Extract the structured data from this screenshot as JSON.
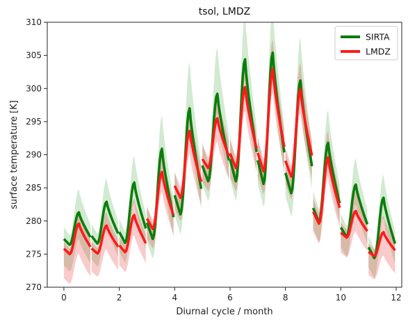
{
  "chart_data": {
    "type": "line",
    "title": "tsol, LMDZ",
    "xlabel": "Diurnal cycle / month",
    "ylabel": "surface temperature [K]",
    "xlim": [
      -0.6,
      12.2
    ],
    "ylim": [
      270,
      310
    ],
    "xticks": [
      0,
      2,
      4,
      6,
      8,
      10,
      12
    ],
    "yticks": [
      270,
      275,
      280,
      285,
      290,
      295,
      300,
      305,
      310
    ],
    "grid": false,
    "legend": {
      "position": "top-right",
      "entries": [
        "SIRTA",
        "LMDZ"
      ]
    },
    "daily_profile_hours": [
      0,
      1,
      2,
      3,
      4,
      5,
      6,
      7,
      8,
      9,
      10,
      11,
      12,
      13,
      14,
      15,
      16,
      17,
      18,
      19,
      20,
      21,
      22,
      23
    ],
    "series": [
      {
        "name": "SIRTA",
        "color": "#0a7d0a",
        "band_color": "#2ca02c",
        "months": [
          {
            "month": 0,
            "min": 276.4,
            "max": 281.3,
            "spread_low": 4.0,
            "spread_high": 3.5
          },
          {
            "month": 1,
            "min": 276.6,
            "max": 282.9,
            "spread_low": 3.5,
            "spread_high": 3.5
          },
          {
            "month": 2,
            "min": 276.7,
            "max": 285.8,
            "spread_low": 3.0,
            "spread_high": 4.0
          },
          {
            "month": 3,
            "min": 277.3,
            "max": 290.9,
            "spread_low": 3.0,
            "spread_high": 5.0
          },
          {
            "month": 4,
            "min": 281.0,
            "max": 297.0,
            "spread_low": 3.0,
            "spread_high": 7.0
          },
          {
            "month": 5,
            "min": 286.0,
            "max": 299.2,
            "spread_low": 3.0,
            "spread_high": 7.0
          },
          {
            "month": 6,
            "min": 286.0,
            "max": 304.4,
            "spread_low": 3.0,
            "spread_high": 7.0
          },
          {
            "month": 7,
            "min": 285.6,
            "max": 305.4,
            "spread_low": 3.5,
            "spread_high": 7.0
          },
          {
            "month": 8,
            "min": 284.2,
            "max": 301.2,
            "spread_low": 3.5,
            "spread_high": 6.5
          },
          {
            "month": 9,
            "min": 279.8,
            "max": 291.8,
            "spread_low": 3.0,
            "spread_high": 5.0
          },
          {
            "month": 10,
            "min": 277.6,
            "max": 285.5,
            "spread_low": 3.0,
            "spread_high": 4.0
          },
          {
            "month": 11,
            "min": 274.4,
            "max": 283.5,
            "spread_low": 3.0,
            "spread_high": 3.5
          }
        ]
      },
      {
        "name": "LMDZ",
        "color": "#ff1a1a",
        "band_color": "#e8302e",
        "months": [
          {
            "month": 0,
            "min": 275.0,
            "max": 279.6,
            "spread_low": 4.5,
            "spread_high": 2.0
          },
          {
            "month": 1,
            "min": 275.1,
            "max": 279.3,
            "spread_low": 3.5,
            "spread_high": 2.0
          },
          {
            "month": 2,
            "min": 275.3,
            "max": 280.9,
            "spread_low": 3.0,
            "spread_high": 2.5
          },
          {
            "month": 3,
            "min": 278.8,
            "max": 287.4,
            "spread_low": 3.0,
            "spread_high": 3.5
          },
          {
            "month": 4,
            "min": 283.5,
            "max": 293.6,
            "spread_low": 3.5,
            "spread_high": 4.0
          },
          {
            "month": 5,
            "min": 288.0,
            "max": 295.5,
            "spread_low": 3.5,
            "spread_high": 4.0
          },
          {
            "month": 6,
            "min": 288.0,
            "max": 300.2,
            "spread_low": 3.5,
            "spread_high": 4.0
          },
          {
            "month": 7,
            "min": 287.5,
            "max": 302.9,
            "spread_low": 3.5,
            "spread_high": 4.5
          },
          {
            "month": 8,
            "min": 286.7,
            "max": 299.9,
            "spread_low": 3.5,
            "spread_high": 4.0
          },
          {
            "month": 9,
            "min": 279.6,
            "max": 289.6,
            "spread_low": 3.0,
            "spread_high": 4.0
          },
          {
            "month": 10,
            "min": 277.5,
            "max": 281.5,
            "spread_low": 3.0,
            "spread_high": 3.0
          },
          {
            "month": 11,
            "min": 274.7,
            "max": 278.3,
            "spread_low": 3.5,
            "spread_high": 2.5
          }
        ]
      }
    ]
  }
}
